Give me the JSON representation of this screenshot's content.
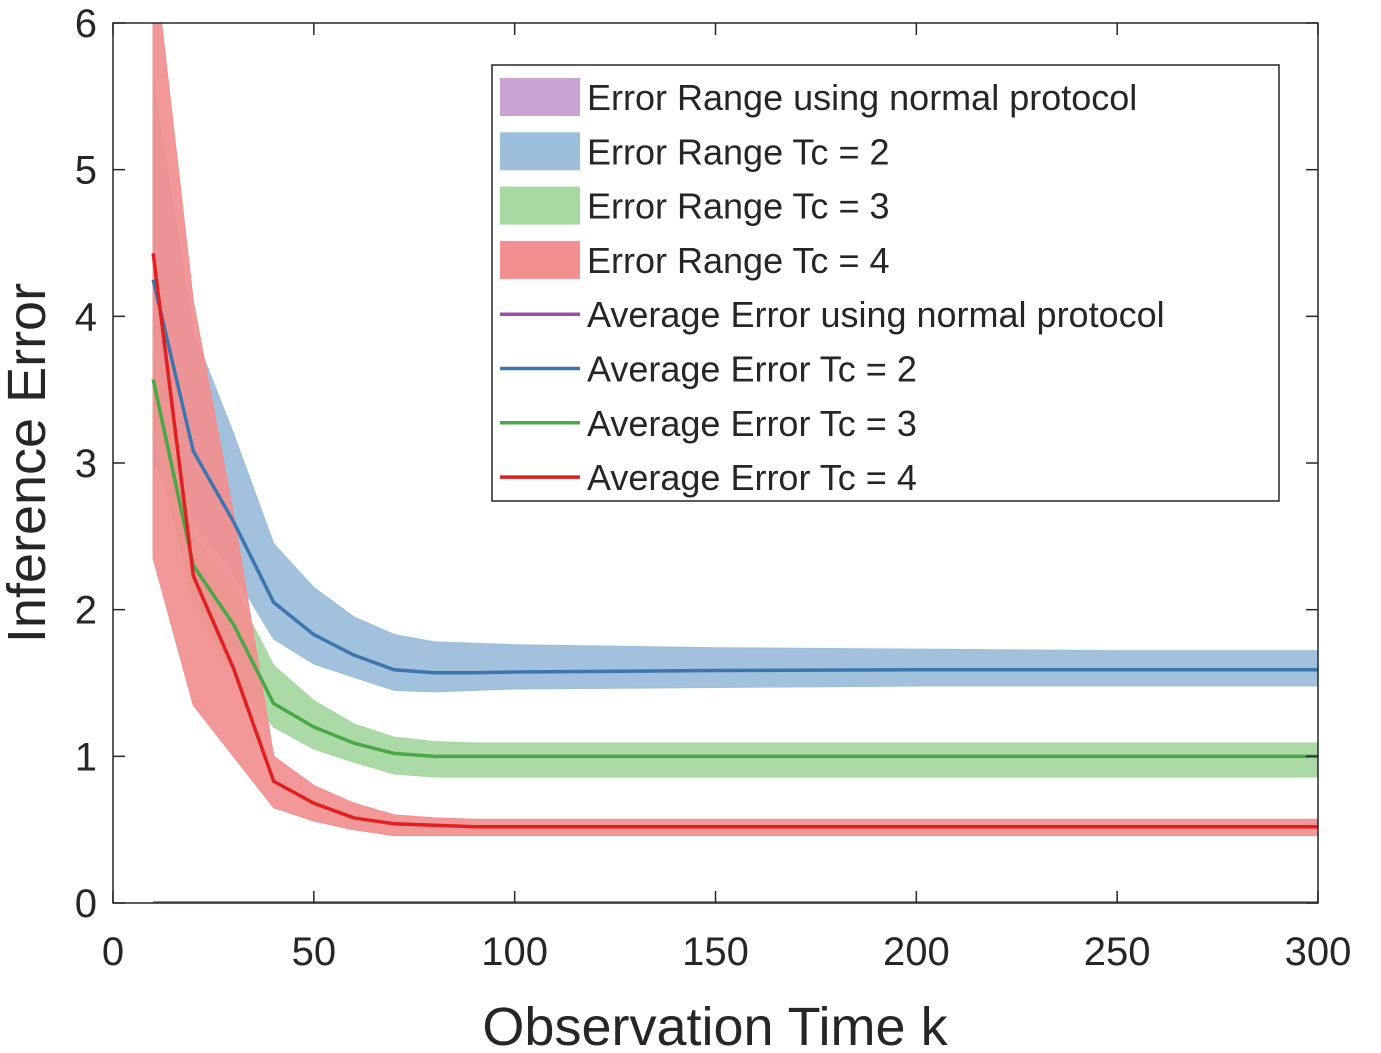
{
  "chart_data": {
    "type": "line",
    "title": "",
    "xlabel": "Observation Time k",
    "ylabel": "Inference Error",
    "xlim": [
      0,
      300
    ],
    "ylim": [
      0,
      6
    ],
    "xticks": [
      0,
      50,
      100,
      150,
      200,
      250,
      300
    ],
    "yticks": [
      0,
      1,
      2,
      3,
      4,
      5,
      6
    ],
    "grid": false,
    "legend_position": "top-right",
    "x": [
      10,
      20,
      30,
      40,
      50,
      60,
      70,
      80,
      90,
      100,
      150,
      200,
      250,
      300
    ],
    "bands": [
      {
        "name": "Error Range using normal protocol",
        "color": "#c9a3d4",
        "lower": [
          0,
          0,
          0,
          0,
          0,
          0,
          0,
          0,
          0,
          0,
          0,
          0,
          0,
          0
        ],
        "upper": [
          0,
          0,
          0,
          0,
          0,
          0,
          0,
          0,
          0,
          0,
          0,
          0,
          0,
          0
        ]
      },
      {
        "name": "Error Range Tc = 2",
        "color": "#9dbedb",
        "lower": [
          3.0,
          2.6,
          2.25,
          1.8,
          1.63,
          1.54,
          1.45,
          1.44,
          1.45,
          1.46,
          1.47,
          1.48,
          1.48,
          1.48
        ],
        "upper": [
          5.6,
          3.9,
          3.2,
          2.45,
          2.15,
          1.95,
          1.83,
          1.78,
          1.77,
          1.76,
          1.74,
          1.73,
          1.72,
          1.72
        ]
      },
      {
        "name": "Error Range Tc = 3",
        "color": "#a6d8a2",
        "lower": [
          3.2,
          2.05,
          1.55,
          1.2,
          1.05,
          0.96,
          0.88,
          0.86,
          0.86,
          0.86,
          0.86,
          0.86,
          0.86,
          0.86
        ],
        "upper": [
          3.9,
          2.5,
          2.15,
          1.62,
          1.38,
          1.22,
          1.13,
          1.1,
          1.09,
          1.09,
          1.09,
          1.09,
          1.09,
          1.09
        ]
      },
      {
        "name": "Error Range Tc = 4",
        "color": "#f28f8f",
        "lower": [
          2.35,
          1.35,
          1.0,
          0.65,
          0.56,
          0.5,
          0.46,
          0.46,
          0.46,
          0.46,
          0.46,
          0.46,
          0.46,
          0.46
        ],
        "upper": [
          6.5,
          4.1,
          2.65,
          1.0,
          0.8,
          0.68,
          0.6,
          0.58,
          0.57,
          0.57,
          0.57,
          0.57,
          0.57,
          0.57
        ]
      }
    ],
    "series": [
      {
        "name": "Average Error using normal protocol",
        "color": "#9b4ea6",
        "values": [
          0,
          0,
          0,
          0,
          0,
          0,
          0,
          0,
          0,
          0,
          0,
          0,
          0,
          0
        ]
      },
      {
        "name": "Average Error Tc = 2",
        "color": "#3b76b0",
        "values": [
          4.25,
          3.08,
          2.6,
          2.05,
          1.83,
          1.69,
          1.59,
          1.57,
          1.57,
          1.575,
          1.585,
          1.59,
          1.59,
          1.59
        ]
      },
      {
        "name": "Average Error Tc = 3",
        "color": "#49a846",
        "values": [
          3.57,
          2.3,
          1.9,
          1.36,
          1.2,
          1.09,
          1.02,
          1.0,
          1.0,
          1.0,
          1.0,
          1.0,
          1.0,
          1.0
        ]
      },
      {
        "name": "Average Error Tc = 4",
        "color": "#e0201f",
        "values": [
          4.43,
          2.23,
          1.6,
          0.83,
          0.68,
          0.58,
          0.54,
          0.53,
          0.52,
          0.52,
          0.52,
          0.52,
          0.52,
          0.52
        ]
      }
    ]
  }
}
